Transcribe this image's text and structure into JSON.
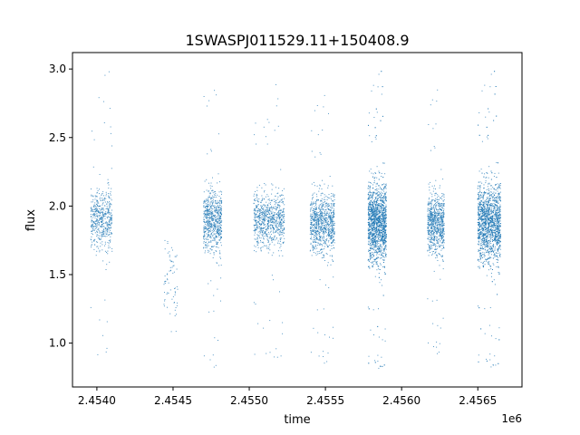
{
  "chart_data": {
    "type": "scatter",
    "title": "1SWASPJ011529.11+150408.9",
    "xlabel": "time",
    "ylabel": "flux",
    "x_offset_label": "1e6",
    "x_tick_labels": [
      "2.4540",
      "2.4545",
      "2.4550",
      "2.4555",
      "2.4560",
      "2.4565"
    ],
    "x_ticks": [
      2454000,
      2454500,
      2455000,
      2455500,
      2456000,
      2456500
    ],
    "y_tick_labels": [
      "1.0",
      "1.5",
      "2.0",
      "2.5",
      "3.0"
    ],
    "y_ticks": [
      1.0,
      1.5,
      2.0,
      2.5,
      3.0
    ],
    "xlim": [
      2453840,
      2456790
    ],
    "ylim": [
      0.68,
      3.12
    ],
    "grid": false,
    "marker_color": "#1f77b4",
    "observing_seasons": [
      {
        "t_start": 2453960,
        "t_end": 2454100,
        "flux_median": 1.9,
        "flux_spread": 0.15,
        "flux_min": 0.88,
        "flux_max": 3.01
      },
      {
        "t_start": 2454440,
        "t_end": 2454530,
        "flux_median": 1.5,
        "flux_spread": 0.25,
        "flux_min": 0.98,
        "flux_max": 1.75
      },
      {
        "t_start": 2454700,
        "t_end": 2454820,
        "flux_median": 1.9,
        "flux_spread": 0.15,
        "flux_min": 0.8,
        "flux_max": 2.9
      },
      {
        "t_start": 2455030,
        "t_end": 2455230,
        "flux_median": 1.9,
        "flux_spread": 0.14,
        "flux_min": 0.86,
        "flux_max": 2.92
      },
      {
        "t_start": 2455400,
        "t_end": 2455560,
        "flux_median": 1.88,
        "flux_spread": 0.15,
        "flux_min": 0.83,
        "flux_max": 2.86
      },
      {
        "t_start": 2455780,
        "t_end": 2455900,
        "flux_median": 1.88,
        "flux_spread": 0.2,
        "flux_min": 0.79,
        "flux_max": 3.02
      },
      {
        "t_start": 2456170,
        "t_end": 2456280,
        "flux_median": 1.88,
        "flux_spread": 0.15,
        "flux_min": 0.9,
        "flux_max": 2.9
      },
      {
        "t_start": 2456500,
        "t_end": 2456650,
        "flux_median": 1.88,
        "flux_spread": 0.2,
        "flux_min": 0.8,
        "flux_max": 3.02
      }
    ]
  }
}
